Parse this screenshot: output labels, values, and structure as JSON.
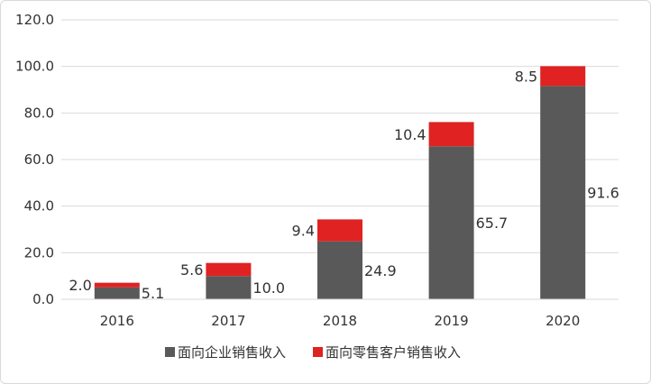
{
  "chart_data": {
    "type": "bar",
    "stacked": true,
    "categories": [
      "2016",
      "2017",
      "2018",
      "2019",
      "2020"
    ],
    "series": [
      {
        "name": "面向企业销售收入",
        "values": [
          5.1,
          10.0,
          24.9,
          65.7,
          91.6
        ],
        "color": "#595959"
      },
      {
        "name": "面向零售客户销售收入",
        "values": [
          2.0,
          5.6,
          9.4,
          10.4,
          8.5
        ],
        "color": "#e02222"
      }
    ],
    "ylim": [
      0,
      120
    ],
    "yticks": [
      "0.0",
      "20.0",
      "40.0",
      "60.0",
      "80.0",
      "100.0",
      "120.0"
    ],
    "ytick_values": [
      0,
      20,
      40,
      60,
      80,
      100,
      120
    ],
    "data_labels": {
      "series0": [
        "5.1",
        "10.0",
        "24.9",
        "65.7",
        "91.6"
      ],
      "series1": [
        "2.0",
        "5.6",
        "9.4",
        "10.4",
        "8.5"
      ]
    },
    "grid": true,
    "legend": "bottom",
    "gridline_color": "#d9d9d9"
  }
}
